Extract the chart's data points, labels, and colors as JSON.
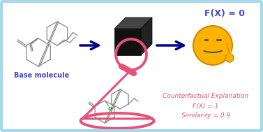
{
  "bg_color": "#ffffff",
  "border_color": "#a8d8ea",
  "arrow_color": "#00008B",
  "fx0_text": "F(X) = 0",
  "fx0_color": "#4444cc",
  "base_mol_label": "Base molecule",
  "base_mol_color": "#4444cc",
  "cf_line1": "Counterfactual Explanation",
  "cf_line2": "F(X) = 1",
  "cf_line3": "Similarity = 0.9",
  "cf_color": "#e8507a",
  "magnifier_color": "#e8507a",
  "mol_color": "#888888",
  "cube_front": "#111111",
  "cube_top": "#444444",
  "cube_right": "#222222",
  "emoji_color": "#FFB300",
  "emoji_edge": "#CC8800",
  "cl_color": "#00aa00"
}
